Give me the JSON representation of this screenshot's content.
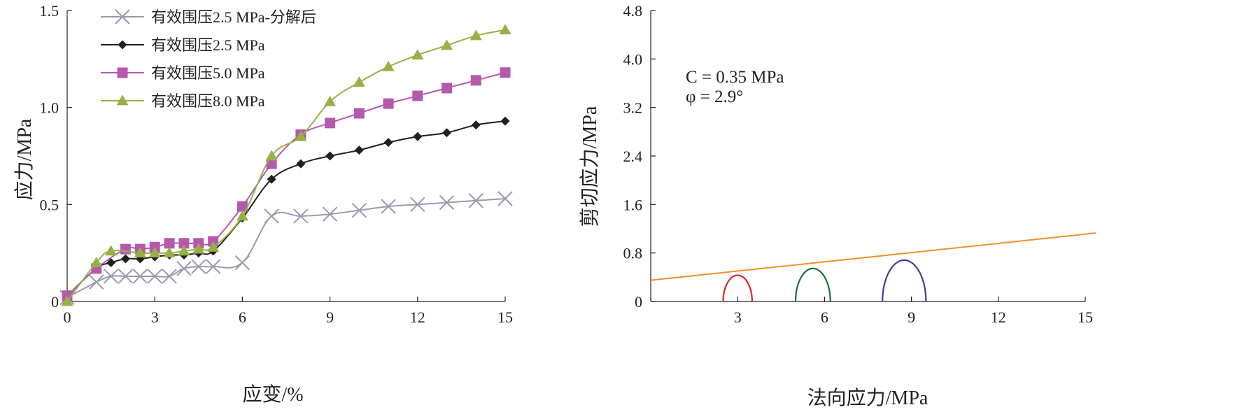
{
  "chart_data": [
    {
      "type": "line",
      "xlabel": "应变/%",
      "ylabel": "应力/MPa",
      "xlim": [
        0,
        15
      ],
      "ylim": [
        0,
        1.5
      ],
      "x_ticks": [
        0,
        3,
        6,
        9,
        12,
        15
      ],
      "y_ticks": [
        0,
        0.5,
        1.0,
        1.5
      ],
      "x_tick_labels": [
        "0",
        "3",
        "6",
        "9",
        "12",
        "15"
      ],
      "y_tick_labels": [
        "0",
        "0.5",
        "1.0",
        "1.5"
      ],
      "grid": false,
      "legend_position": "top-left",
      "series": [
        {
          "name": "有效围压2.5 MPa-分解后",
          "color": "#9a9aae",
          "marker": "x",
          "points": [
            [
              0,
              0.02
            ],
            [
              1,
              0.1
            ],
            [
              1.5,
              0.13
            ],
            [
              2,
              0.13
            ],
            [
              2.5,
              0.13
            ],
            [
              3,
              0.13
            ],
            [
              3.5,
              0.13
            ],
            [
              4,
              0.17
            ],
            [
              4.5,
              0.18
            ],
            [
              5,
              0.18
            ],
            [
              6,
              0.2
            ],
            [
              7,
              0.44
            ],
            [
              8,
              0.44
            ],
            [
              9,
              0.45
            ],
            [
              10,
              0.47
            ],
            [
              11,
              0.49
            ],
            [
              12,
              0.5
            ],
            [
              13,
              0.51
            ],
            [
              14,
              0.52
            ],
            [
              15,
              0.53
            ]
          ]
        },
        {
          "name": "有效围压2.5 MPa",
          "color": "#231f20",
          "marker": "diamond",
          "points": [
            [
              0,
              0.03
            ],
            [
              1,
              0.17
            ],
            [
              1.5,
              0.2
            ],
            [
              2,
              0.22
            ],
            [
              2.5,
              0.22
            ],
            [
              3,
              0.23
            ],
            [
              3.5,
              0.24
            ],
            [
              4,
              0.24
            ],
            [
              4.5,
              0.25
            ],
            [
              5,
              0.26
            ],
            [
              6,
              0.43
            ],
            [
              7,
              0.63
            ],
            [
              8,
              0.71
            ],
            [
              9,
              0.75
            ],
            [
              10,
              0.78
            ],
            [
              11,
              0.82
            ],
            [
              12,
              0.85
            ],
            [
              13,
              0.87
            ],
            [
              14,
              0.91
            ],
            [
              15,
              0.93
            ]
          ]
        },
        {
          "name": "有效围压5.0 MPa",
          "color": "#b559ad",
          "marker": "square",
          "points": [
            [
              0,
              0.03
            ],
            [
              1,
              0.17
            ],
            [
              2,
              0.27
            ],
            [
              2.5,
              0.27
            ],
            [
              3,
              0.28
            ],
            [
              3.5,
              0.3
            ],
            [
              4,
              0.3
            ],
            [
              4.5,
              0.3
            ],
            [
              5,
              0.31
            ],
            [
              6,
              0.49
            ],
            [
              7,
              0.71
            ],
            [
              8,
              0.86
            ],
            [
              9,
              0.92
            ],
            [
              10,
              0.97
            ],
            [
              11,
              1.02
            ],
            [
              12,
              1.06
            ],
            [
              13,
              1.1
            ],
            [
              14,
              1.14
            ],
            [
              15,
              1.18
            ]
          ]
        },
        {
          "name": "有效围压8.0 MPa",
          "color": "#98b144",
          "marker": "triangle",
          "points": [
            [
              0,
              0.0
            ],
            [
              1,
              0.2
            ],
            [
              1.5,
              0.26
            ],
            [
              2.5,
              0.25
            ],
            [
              3,
              0.25
            ],
            [
              3.5,
              0.25
            ],
            [
              4,
              0.26
            ],
            [
              4.5,
              0.27
            ],
            [
              5,
              0.28
            ],
            [
              6,
              0.44
            ],
            [
              7,
              0.75
            ],
            [
              8,
              0.85
            ],
            [
              9,
              1.03
            ],
            [
              10,
              1.13
            ],
            [
              11,
              1.21
            ],
            [
              12,
              1.27
            ],
            [
              13,
              1.32
            ],
            [
              14,
              1.37
            ],
            [
              15,
              1.4
            ]
          ]
        }
      ]
    },
    {
      "type": "line",
      "xlabel": "法向应力/MPa",
      "ylabel": "剪切应力/MPa",
      "xlim": [
        0,
        15
      ],
      "ylim": [
        0,
        4.8
      ],
      "x_ticks": [
        0,
        3,
        6,
        9,
        12,
        15
      ],
      "y_ticks": [
        0,
        0.8,
        1.6,
        2.4,
        3.2,
        4.0,
        4.8
      ],
      "x_tick_labels": [
        "",
        "3",
        "6",
        "9",
        "12",
        "15"
      ],
      "y_tick_labels": [
        "0",
        "0.8",
        "1.6",
        "2.4",
        "3.2",
        "4.0",
        "4.8"
      ],
      "grid": false,
      "annotations": [
        "C = 0.35 MPa",
        "φ = 2.9°"
      ],
      "envelope": {
        "intercept": 0.35,
        "slope": 0.0507,
        "color": "#f0922b"
      },
      "mohr_circles": [
        {
          "sigma3": 2.5,
          "sigma1": 3.5,
          "color": "#e0242b"
        },
        {
          "sigma3": 5.0,
          "sigma1": 6.2,
          "color": "#1f6e3b"
        },
        {
          "sigma3": 8.0,
          "sigma1": 9.5,
          "color": "#4b3a9b"
        }
      ]
    }
  ]
}
